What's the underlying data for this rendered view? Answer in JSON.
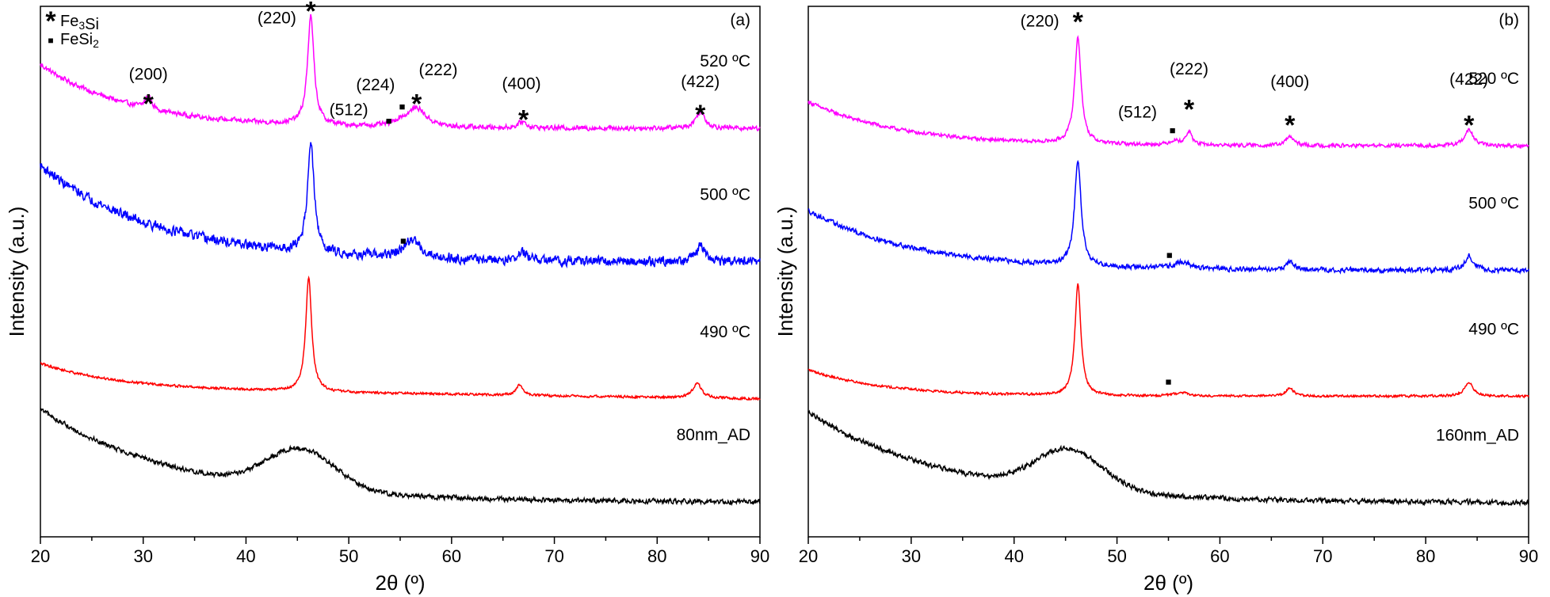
{
  "chart_data": [
    {
      "type": "line",
      "panel_label": "(a)",
      "xlabel": "2θ (º)",
      "ylabel": "Intensity (a.u.)",
      "xlim": [
        20,
        90
      ],
      "xticks": [
        "20",
        "30",
        "40",
        "50",
        "60",
        "70",
        "80",
        "90"
      ],
      "ylim": [
        0,
        1
      ],
      "legend": [
        {
          "marker": "*",
          "label": "Fe3Si"
        },
        {
          "marker": "■",
          "label": "FeSi2"
        }
      ],
      "series": [
        {
          "name": "520 ºC",
          "color": "#ff00ff",
          "baseline": 0.77,
          "start_level": 0.89,
          "decay": 0.3,
          "noise": 0.004,
          "tail": 0.0,
          "peaks": [
            {
              "pos": 30.5,
              "height": 0.025,
              "width": 0.35
            },
            {
              "pos": 46.3,
              "height": 0.205,
              "width": 0.38
            },
            {
              "pos": 55.0,
              "height": 0.008,
              "width": 0.6
            },
            {
              "pos": 56.6,
              "height": 0.036,
              "width": 1.1
            },
            {
              "pos": 66.9,
              "height": 0.012,
              "width": 0.45
            },
            {
              "pos": 84.2,
              "height": 0.031,
              "width": 0.55
            }
          ]
        },
        {
          "name": "500 ºC",
          "color": "#0000ff",
          "baseline": 0.518,
          "start_level": 0.7,
          "decay": 0.38,
          "noise": 0.008,
          "tail": 0.0,
          "peaks": [
            {
              "pos": 46.3,
              "height": 0.205,
              "width": 0.4
            },
            {
              "pos": 56.2,
              "height": 0.034,
              "width": 1.0
            },
            {
              "pos": 66.9,
              "height": 0.016,
              "width": 0.45
            },
            {
              "pos": 84.2,
              "height": 0.028,
              "width": 0.55
            }
          ]
        },
        {
          "name": "490 ºC",
          "color": "#ff0000",
          "baseline": 0.28,
          "start_level": 0.327,
          "decay": 0.25,
          "noise": 0.002,
          "tail": -0.02,
          "peaks": [
            {
              "pos": 46.1,
              "height": 0.215,
              "width": 0.35
            },
            {
              "pos": 66.6,
              "height": 0.019,
              "width": 0.4
            },
            {
              "pos": 83.9,
              "height": 0.028,
              "width": 0.5
            }
          ]
        },
        {
          "name": "80nm_AD",
          "color": "#000000",
          "baseline": 0.065,
          "start_level": 0.24,
          "decay": 0.45,
          "noise": 0.004,
          "tail": 0.0,
          "broad": {
            "pos": 45.3,
            "height": 0.075,
            "width": 3.3
          },
          "peaks": []
        }
      ],
      "annotations": [
        {
          "text": "(200)",
          "x": 30.5,
          "y": 0.862
        },
        {
          "text": "(220)",
          "x": 43.0,
          "y": 0.968
        },
        {
          "text": "(224)",
          "x": 52.6,
          "y": 0.842
        },
        {
          "text": "(222)",
          "x": 58.7,
          "y": 0.87
        },
        {
          "text": "(512)",
          "x": 50.0,
          "y": 0.795
        },
        {
          "text": "(400)",
          "x": 66.8,
          "y": 0.844
        },
        {
          "text": "(422)",
          "x": 84.2,
          "y": 0.848
        }
      ],
      "markers": [
        {
          "symbol": "*",
          "x": 30.5,
          "y": 0.82
        },
        {
          "symbol": "*",
          "x": 46.3,
          "y": 0.995
        },
        {
          "symbol": "*",
          "x": 56.6,
          "y": 0.82
        },
        {
          "symbol": "*",
          "x": 67.0,
          "y": 0.79
        },
        {
          "symbol": "*",
          "x": 84.2,
          "y": 0.8
        },
        {
          "symbol": "■",
          "x": 55.2,
          "y": 0.815
        },
        {
          "symbol": "■",
          "x": 53.9,
          "y": 0.788
        },
        {
          "symbol": "■",
          "x": 55.3,
          "y": 0.562
        }
      ]
    },
    {
      "type": "line",
      "panel_label": "(b)",
      "xlabel": "2θ (º)",
      "ylabel": "Intensity (a.u.)",
      "xlim": [
        20,
        90
      ],
      "xticks": [
        "20",
        "30",
        "40",
        "50",
        "60",
        "70",
        "80",
        "90"
      ],
      "ylim": [
        0,
        1
      ],
      "series": [
        {
          "name": "520 ºC",
          "color": "#ff00ff",
          "baseline": 0.737,
          "start_level": 0.82,
          "decay": 0.3,
          "noise": 0.003,
          "tail": 0.0,
          "peaks": [
            {
              "pos": 46.2,
              "height": 0.2,
              "width": 0.38
            },
            {
              "pos": 55.6,
              "height": 0.008,
              "width": 0.6
            },
            {
              "pos": 57.0,
              "height": 0.025,
              "width": 0.35
            },
            {
              "pos": 66.8,
              "height": 0.017,
              "width": 0.45
            },
            {
              "pos": 84.2,
              "height": 0.03,
              "width": 0.5
            }
          ]
        },
        {
          "name": "500 ºC",
          "color": "#0000ff",
          "baseline": 0.502,
          "start_level": 0.615,
          "decay": 0.35,
          "noise": 0.004,
          "tail": 0.0,
          "peaks": [
            {
              "pos": 46.2,
              "height": 0.2,
              "width": 0.38
            },
            {
              "pos": 56.3,
              "height": 0.012,
              "width": 1.0
            },
            {
              "pos": 66.8,
              "height": 0.016,
              "width": 0.45
            },
            {
              "pos": 84.2,
              "height": 0.028,
              "width": 0.5
            }
          ]
        },
        {
          "name": "490 ºC",
          "color": "#ff0000",
          "baseline": 0.265,
          "start_level": 0.315,
          "decay": 0.25,
          "noise": 0.002,
          "tail": 0.0,
          "peaks": [
            {
              "pos": 46.2,
              "height": 0.21,
              "width": 0.35
            },
            {
              "pos": 56.3,
              "height": 0.006,
              "width": 0.8
            },
            {
              "pos": 66.8,
              "height": 0.016,
              "width": 0.45
            },
            {
              "pos": 84.2,
              "height": 0.027,
              "width": 0.5
            }
          ]
        },
        {
          "name": "160nm_AD",
          "color": "#000000",
          "baseline": 0.064,
          "start_level": 0.235,
          "decay": 0.45,
          "noise": 0.004,
          "tail": 0.0,
          "broad": {
            "pos": 45.3,
            "height": 0.075,
            "width": 3.3
          },
          "peaks": []
        }
      ],
      "annotations": [
        {
          "text": "(220)",
          "x": 42.5,
          "y": 0.962
        },
        {
          "text": "(222)",
          "x": 57.0,
          "y": 0.872
        },
        {
          "text": "(512)",
          "x": 52.0,
          "y": 0.79
        },
        {
          "text": "(400)",
          "x": 66.8,
          "y": 0.848
        },
        {
          "text": "(422)",
          "x": 84.2,
          "y": 0.852
        }
      ],
      "markers": [
        {
          "symbol": "*",
          "x": 46.2,
          "y": 0.975
        },
        {
          "symbol": "*",
          "x": 57.0,
          "y": 0.81
        },
        {
          "symbol": "*",
          "x": 66.8,
          "y": 0.78
        },
        {
          "symbol": "*",
          "x": 84.2,
          "y": 0.78
        },
        {
          "symbol": "■",
          "x": 55.4,
          "y": 0.77
        },
        {
          "symbol": "■",
          "x": 55.1,
          "y": 0.535
        },
        {
          "symbol": "■",
          "x": 55.0,
          "y": 0.296
        }
      ]
    }
  ]
}
